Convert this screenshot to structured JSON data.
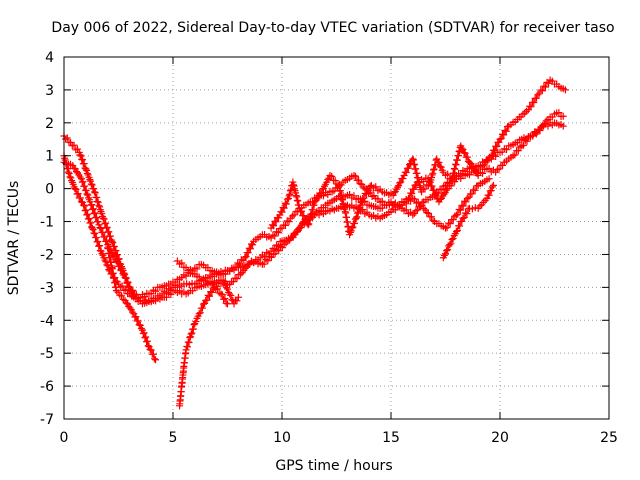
{
  "chart_data": {
    "type": "scatter",
    "title": "Day 006 of 2022, Sidereal Day-to-day VTEC variation (SDTVAR) for receiver taso",
    "xlabel": "GPS time / hours",
    "ylabel": "SDTVAR / TECUs",
    "xlim": [
      0,
      25
    ],
    "ylim": [
      -7,
      4
    ],
    "xticks": [
      "0",
      "5",
      "10",
      "15",
      "20",
      "25"
    ],
    "yticks": [
      "4",
      "3",
      "2",
      "1",
      "0",
      "-1",
      "-2",
      "-3",
      "-4",
      "-5",
      "-6",
      "-7"
    ],
    "grid": true,
    "marker": "+",
    "color": "#ff0000",
    "series": [
      {
        "points": [
          [
            0.0,
            1.0
          ],
          [
            0.2,
            0.5
          ],
          [
            0.5,
            0.0
          ],
          [
            0.9,
            -0.5
          ],
          [
            1.3,
            -1.2
          ],
          [
            1.7,
            -1.9
          ],
          [
            2.1,
            -2.5
          ],
          [
            2.5,
            -2.9
          ],
          [
            3.0,
            -3.2
          ],
          [
            3.5,
            -3.4
          ],
          [
            4.0,
            -3.4
          ],
          [
            4.5,
            -3.2
          ],
          [
            5.0,
            -3.0
          ],
          [
            5.5,
            -2.9
          ],
          [
            6.0,
            -2.9
          ],
          [
            6.5,
            -2.7
          ],
          [
            7.0,
            -2.6
          ],
          [
            7.5,
            -2.5
          ],
          [
            8.0,
            -2.4
          ],
          [
            8.5,
            -2.3
          ],
          [
            9.0,
            -2.1
          ],
          [
            9.5,
            -1.9
          ],
          [
            10.0,
            -1.6
          ],
          [
            10.4,
            -1.5
          ],
          [
            10.8,
            -1.2
          ],
          [
            11.2,
            -0.9
          ],
          [
            11.6,
            -0.7
          ],
          [
            12.0,
            -0.5
          ],
          [
            12.5,
            -0.3
          ],
          [
            13.0,
            -0.2
          ],
          [
            13.5,
            -0.3
          ],
          [
            14.0,
            -0.5
          ],
          [
            14.5,
            -0.6
          ],
          [
            15.0,
            -0.4
          ],
          [
            15.5,
            -0.6
          ],
          [
            16.0,
            -0.8
          ],
          [
            16.5,
            -0.4
          ],
          [
            17.0,
            -0.2
          ],
          [
            17.5,
            0.1
          ],
          [
            18.0,
            0.4
          ],
          [
            18.5,
            0.6
          ],
          [
            19.0,
            0.7
          ],
          [
            19.5,
            0.9
          ],
          [
            20.0,
            1.1
          ],
          [
            20.5,
            1.3
          ],
          [
            21.0,
            1.5
          ],
          [
            21.5,
            1.6
          ],
          [
            22.0,
            1.9
          ],
          [
            22.5,
            2.0
          ],
          [
            22.9,
            1.9
          ]
        ]
      },
      {
        "points": [
          [
            0.0,
            1.6
          ],
          [
            0.3,
            1.4
          ],
          [
            0.7,
            1.1
          ],
          [
            1.0,
            0.6
          ],
          [
            1.4,
            -0.1
          ],
          [
            1.8,
            -0.9
          ],
          [
            2.2,
            -1.6
          ],
          [
            2.6,
            -2.3
          ],
          [
            3.0,
            -3.0
          ],
          [
            3.4,
            -3.3
          ],
          [
            3.9,
            -3.2
          ],
          [
            4.4,
            -3.0
          ],
          [
            4.9,
            -2.9
          ],
          [
            5.4,
            -2.7
          ],
          [
            5.9,
            -2.5
          ],
          [
            6.3,
            -2.3
          ],
          [
            6.8,
            -2.5
          ],
          [
            7.3,
            -2.6
          ],
          [
            7.8,
            -2.4
          ],
          [
            8.3,
            -2.1
          ],
          [
            8.7,
            -1.6
          ],
          [
            9.1,
            -1.4
          ],
          [
            9.5,
            -1.5
          ],
          [
            10.0,
            -1.2
          ],
          [
            10.4,
            -0.9
          ],
          [
            10.8,
            -0.6
          ],
          [
            11.3,
            -0.4
          ],
          [
            11.8,
            -0.2
          ],
          [
            12.3,
            -0.1
          ],
          [
            12.8,
            0.2
          ],
          [
            13.3,
            0.4
          ],
          [
            13.8,
            0.0
          ],
          [
            14.3,
            -0.3
          ],
          [
            14.8,
            -0.5
          ],
          [
            15.3,
            -0.5
          ],
          [
            15.8,
            -0.3
          ],
          [
            16.2,
            0.2
          ],
          [
            16.7,
            0.3
          ],
          [
            17.2,
            -0.4
          ],
          [
            17.6,
            0.0
          ],
          [
            18.0,
            0.3
          ],
          [
            18.4,
            0.4
          ],
          [
            18.8,
            0.5
          ],
          [
            19.2,
            0.7
          ],
          [
            19.6,
            1.0
          ],
          [
            20.0,
            1.5
          ],
          [
            20.4,
            1.9
          ],
          [
            20.8,
            2.1
          ],
          [
            21.3,
            2.4
          ],
          [
            21.8,
            2.9
          ],
          [
            22.3,
            3.3
          ],
          [
            22.7,
            3.1
          ],
          [
            23.0,
            3.0
          ]
        ]
      },
      {
        "points": [
          [
            0.0,
            0.8
          ],
          [
            0.4,
            0.7
          ],
          [
            0.8,
            0.3
          ],
          [
            1.2,
            -0.4
          ],
          [
            1.6,
            -1.1
          ],
          [
            2.0,
            -1.7
          ],
          [
            2.4,
            -2.2
          ],
          [
            2.8,
            -2.7
          ],
          [
            3.2,
            -3.3
          ],
          [
            3.6,
            -3.5
          ],
          [
            4.1,
            -3.4
          ],
          [
            4.6,
            -3.3
          ],
          [
            5.1,
            -3.1
          ],
          [
            5.6,
            -3.2
          ],
          [
            6.1,
            -3.0
          ],
          [
            6.6,
            -2.9
          ],
          [
            7.1,
            -2.8
          ],
          [
            7.6,
            -2.9
          ],
          [
            8.1,
            -2.6
          ],
          [
            8.6,
            -2.2
          ],
          [
            9.1,
            -2.3
          ],
          [
            9.6,
            -2.0
          ],
          [
            10.1,
            -1.7
          ],
          [
            10.6,
            -1.4
          ],
          [
            11.0,
            -1.0
          ],
          [
            11.5,
            -0.8
          ],
          [
            12.0,
            -0.7
          ],
          [
            12.5,
            -0.6
          ],
          [
            13.0,
            -0.5
          ],
          [
            13.5,
            -0.6
          ],
          [
            14.0,
            -0.8
          ],
          [
            14.5,
            -0.9
          ],
          [
            15.0,
            -0.7
          ],
          [
            15.5,
            -0.5
          ],
          [
            16.0,
            -0.3
          ],
          [
            16.5,
            -0.6
          ],
          [
            17.0,
            -1.0
          ],
          [
            17.5,
            -1.2
          ],
          [
            18.0,
            -0.8
          ],
          [
            18.5,
            -0.3
          ],
          [
            19.0,
            0.1
          ],
          [
            19.5,
            0.3
          ]
        ]
      },
      {
        "points": [
          [
            2.0,
            -1.8
          ],
          [
            2.2,
            -2.4
          ],
          [
            2.4,
            -3.1
          ],
          [
            2.8,
            -3.4
          ],
          [
            3.2,
            -3.8
          ],
          [
            3.6,
            -4.3
          ],
          [
            3.9,
            -4.8
          ],
          [
            4.2,
            -5.2
          ]
        ]
      },
      {
        "points": [
          [
            5.3,
            -6.6
          ],
          [
            5.4,
            -6.0
          ],
          [
            5.5,
            -5.4
          ],
          [
            5.6,
            -4.9
          ],
          [
            5.8,
            -4.5
          ],
          [
            6.0,
            -4.1
          ],
          [
            6.2,
            -3.8
          ],
          [
            6.5,
            -3.4
          ],
          [
            6.9,
            -3.0
          ],
          [
            7.3,
            -2.8
          ],
          [
            7.6,
            -3.2
          ],
          [
            7.8,
            -3.5
          ],
          [
            8.0,
            -3.3
          ]
        ]
      },
      {
        "points": [
          [
            5.2,
            -2.2
          ],
          [
            5.6,
            -2.4
          ],
          [
            6.0,
            -2.6
          ],
          [
            6.4,
            -2.8
          ],
          [
            6.8,
            -2.9
          ],
          [
            7.2,
            -3.2
          ],
          [
            7.5,
            -3.5
          ]
        ]
      },
      {
        "points": [
          [
            17.4,
            -2.1
          ],
          [
            17.7,
            -1.7
          ],
          [
            18.0,
            -1.3
          ],
          [
            18.3,
            -0.9
          ],
          [
            18.6,
            -0.6
          ],
          [
            19.0,
            -0.6
          ],
          [
            19.4,
            -0.3
          ],
          [
            19.7,
            0.1
          ]
        ]
      },
      {
        "points": [
          [
            9.5,
            -1.2
          ],
          [
            9.9,
            -0.8
          ],
          [
            10.3,
            -0.3
          ],
          [
            10.5,
            0.2
          ],
          [
            10.8,
            -0.6
          ],
          [
            11.2,
            -1.1
          ],
          [
            11.5,
            -0.4
          ],
          [
            11.9,
            0.0
          ],
          [
            12.2,
            0.4
          ],
          [
            12.6,
            0.1
          ],
          [
            12.9,
            -0.7
          ],
          [
            13.1,
            -1.4
          ],
          [
            13.4,
            -0.9
          ],
          [
            13.7,
            -0.3
          ],
          [
            14.1,
            0.1
          ],
          [
            14.6,
            -0.1
          ],
          [
            15.1,
            -0.2
          ],
          [
            15.6,
            0.4
          ],
          [
            16.0,
            0.9
          ],
          [
            16.4,
            -0.1
          ],
          [
            16.8,
            0.2
          ],
          [
            17.1,
            0.9
          ],
          [
            17.4,
            0.5
          ],
          [
            17.8,
            0.3
          ],
          [
            18.2,
            1.3
          ],
          [
            18.6,
            0.8
          ],
          [
            19.0,
            0.4
          ],
          [
            19.4,
            0.6
          ],
          [
            19.8,
            0.5
          ],
          [
            20.2,
            0.8
          ],
          [
            20.6,
            1.0
          ],
          [
            21.0,
            1.3
          ],
          [
            21.4,
            1.6
          ],
          [
            21.8,
            1.8
          ],
          [
            22.2,
            2.1
          ],
          [
            22.6,
            2.3
          ],
          [
            22.9,
            2.2
          ]
        ]
      }
    ]
  }
}
